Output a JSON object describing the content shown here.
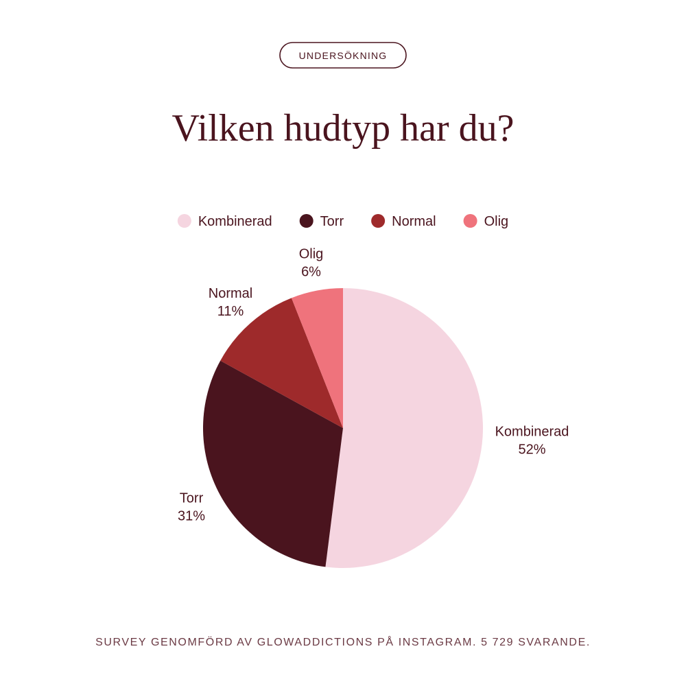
{
  "badge": "UNDERSÖKNING",
  "chart_data": {
    "type": "pie",
    "title": "Vilken hudtyp har du?",
    "categories": [
      "Kombinerad",
      "Torr",
      "Normal",
      "Olig"
    ],
    "values": [
      52,
      31,
      11,
      6
    ],
    "value_labels": [
      "52%",
      "31%",
      "11%",
      "6%"
    ],
    "colors": [
      "#f5d5e0",
      "#4a141e",
      "#9e2a2b",
      "#ef737c"
    ],
    "legend": "top"
  },
  "footnote": "SURVEY GENOMFÖRD AV GLOWADDICTIONS PÅ INSTAGRAM. 5 729 SVARANDE."
}
